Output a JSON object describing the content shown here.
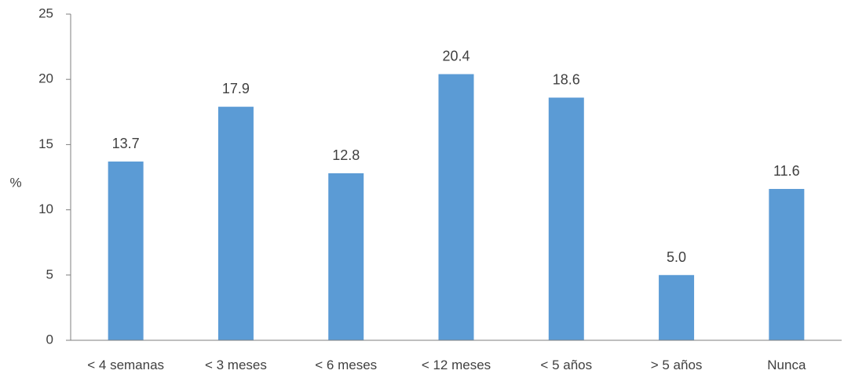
{
  "chart_data": {
    "type": "bar",
    "title": "",
    "xlabel": "",
    "ylabel": "%",
    "ylim": [
      0,
      25
    ],
    "yticks": [
      0,
      5,
      10,
      15,
      20,
      25
    ],
    "grid": false,
    "legend": "none",
    "categories": [
      "< 4 semanas",
      "< 3 meses",
      "< 6 meses",
      "< 12 meses",
      "< 5 años",
      "> 5 años",
      "Nunca"
    ],
    "values": [
      13.7,
      17.9,
      12.8,
      20.4,
      18.6,
      5.0,
      11.6
    ],
    "value_labels": [
      "13.7",
      "17.9",
      "12.8",
      "20.4",
      "18.6",
      "5.0",
      "11.6"
    ],
    "bar_color": "#5b9bd5",
    "axis_color": "#7f7f7f",
    "text_color": "#404040"
  }
}
